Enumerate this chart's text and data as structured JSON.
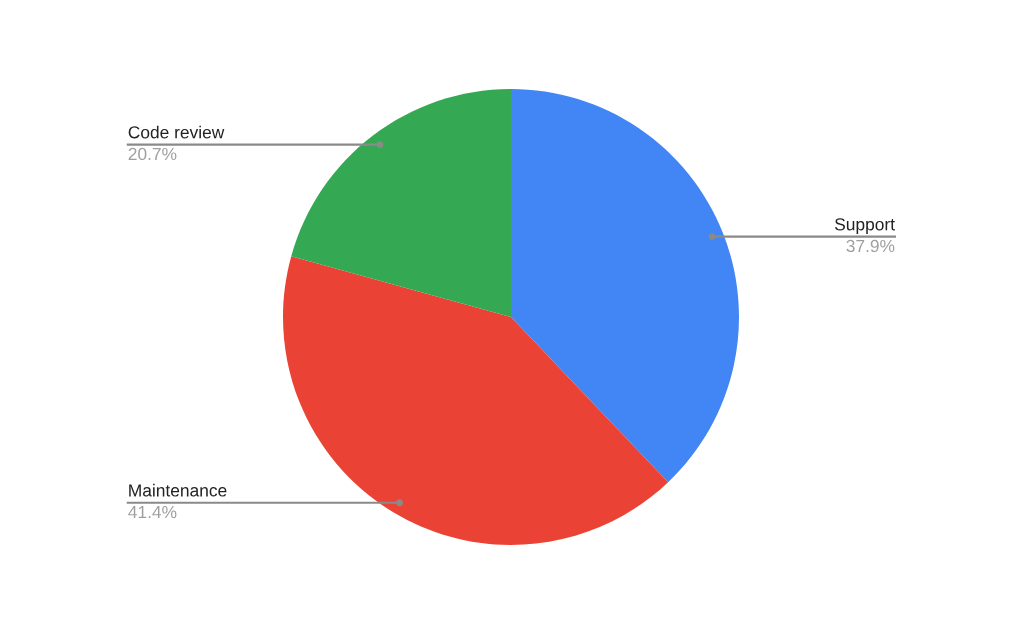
{
  "chart_data": {
    "type": "pie",
    "categories": [
      "Support",
      "Maintenance",
      "Code review"
    ],
    "values": [
      37.9,
      41.4,
      20.7
    ],
    "value_labels": [
      "37.9%",
      "41.4%",
      "20.7%"
    ],
    "colors": [
      "#4285f4",
      "#ea4335",
      "#34a853"
    ],
    "legend": false
  }
}
